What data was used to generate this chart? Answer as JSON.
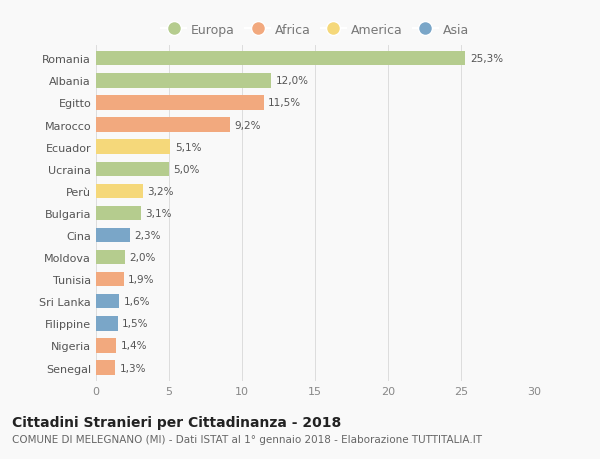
{
  "countries": [
    "Romania",
    "Albania",
    "Egitto",
    "Marocco",
    "Ecuador",
    "Ucraina",
    "Perù",
    "Bulgaria",
    "Cina",
    "Moldova",
    "Tunisia",
    "Sri Lanka",
    "Filippine",
    "Nigeria",
    "Senegal"
  ],
  "values": [
    25.3,
    12.0,
    11.5,
    9.2,
    5.1,
    5.0,
    3.2,
    3.1,
    2.3,
    2.0,
    1.9,
    1.6,
    1.5,
    1.4,
    1.3
  ],
  "labels": [
    "25,3%",
    "12,0%",
    "11,5%",
    "9,2%",
    "5,1%",
    "5,0%",
    "3,2%",
    "3,1%",
    "2,3%",
    "2,0%",
    "1,9%",
    "1,6%",
    "1,5%",
    "1,4%",
    "1,3%"
  ],
  "continents": [
    "Europa",
    "Europa",
    "Africa",
    "Africa",
    "America",
    "Europa",
    "America",
    "Europa",
    "Asia",
    "Europa",
    "Africa",
    "Asia",
    "Asia",
    "Africa",
    "Africa"
  ],
  "colors": {
    "Europa": "#b5cc8e",
    "Africa": "#f2a97e",
    "America": "#f5d87a",
    "Asia": "#7aa6c8"
  },
  "legend_order": [
    "Europa",
    "Africa",
    "America",
    "Asia"
  ],
  "xlim": [
    0,
    30
  ],
  "xticks": [
    0,
    5,
    10,
    15,
    20,
    25,
    30
  ],
  "title": "Cittadini Stranieri per Cittadinanza - 2018",
  "subtitle": "COMUNE DI MELEGNANO (MI) - Dati ISTAT al 1° gennaio 2018 - Elaborazione TUTTITALIA.IT",
  "background_color": "#f9f9f9",
  "bar_height": 0.65,
  "title_fontsize": 10,
  "subtitle_fontsize": 7.5,
  "label_fontsize": 7.5,
  "tick_fontsize": 8,
  "legend_fontsize": 9
}
